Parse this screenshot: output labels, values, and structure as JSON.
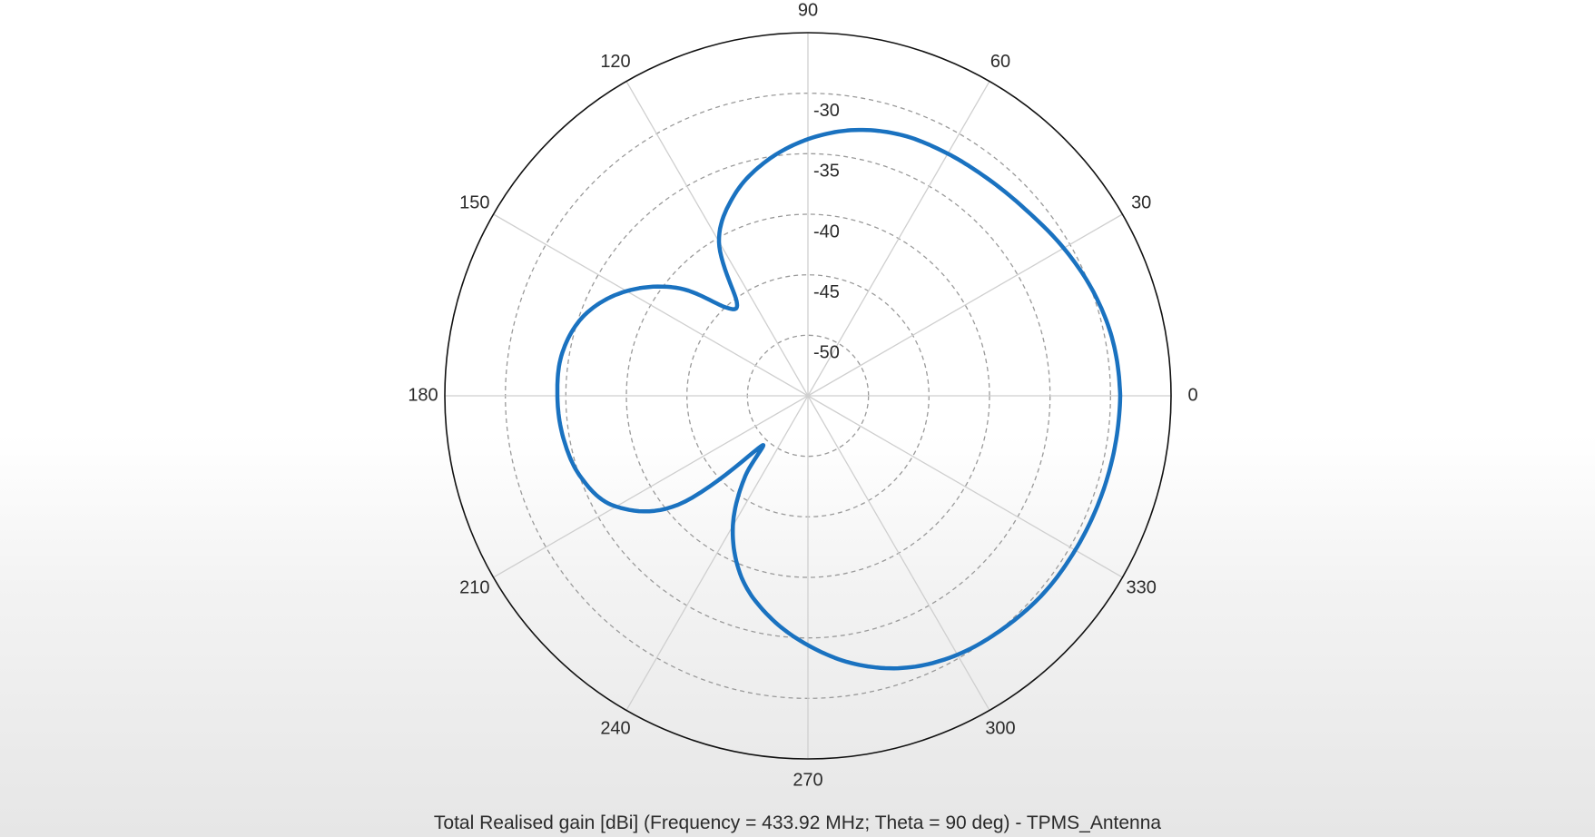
{
  "chart_data": {
    "type": "polar-line",
    "caption": "Total Realised gain [dBi] (Frequency = 433.92 MHz; Theta = 90 deg) - TPMS_Antenna",
    "angle_ticks": [
      "0",
      "30",
      "60",
      "90",
      "120",
      "150",
      "180",
      "210",
      "240",
      "270",
      "300",
      "330"
    ],
    "radial_ticks": [
      "-30",
      "-35",
      "-40",
      "-45",
      "-50"
    ],
    "radial_range": [
      -55,
      -25
    ],
    "grid": true,
    "series": [
      {
        "color": "#1a72c0",
        "points": [
          {
            "phi": 0,
            "gain": -29.2
          },
          {
            "phi": 10,
            "gain": -29.4
          },
          {
            "phi": 20,
            "gain": -29.9
          },
          {
            "phi": 30,
            "gain": -30.6
          },
          {
            "phi": 40,
            "gain": -31.3
          },
          {
            "phi": 50,
            "gain": -31.7
          },
          {
            "phi": 60,
            "gain": -31.9
          },
          {
            "phi": 70,
            "gain": -32.1
          },
          {
            "phi": 80,
            "gain": -32.7
          },
          {
            "phi": 90,
            "gain": -33.8
          },
          {
            "phi": 100,
            "gain": -35.3
          },
          {
            "phi": 110,
            "gain": -37.3
          },
          {
            "phi": 120,
            "gain": -40.3
          },
          {
            "phi": 127,
            "gain": -45.2
          },
          {
            "phi": 133,
            "gain": -45.0
          },
          {
            "phi": 140,
            "gain": -41.2
          },
          {
            "phi": 150,
            "gain": -37.7
          },
          {
            "phi": 160,
            "gain": -35.4
          },
          {
            "phi": 170,
            "gain": -34.4
          },
          {
            "phi": 180,
            "gain": -34.3
          },
          {
            "phi": 190,
            "gain": -34.5
          },
          {
            "phi": 200,
            "gain": -35.1
          },
          {
            "phi": 210,
            "gain": -36.7
          },
          {
            "phi": 220,
            "gain": -41.0
          },
          {
            "phi": 227,
            "gain": -49.3
          },
          {
            "phi": 232,
            "gain": -46.6
          },
          {
            "phi": 240,
            "gain": -42.6
          },
          {
            "phi": 250,
            "gain": -39.0
          },
          {
            "phi": 260,
            "gain": -36.5
          },
          {
            "phi": 270,
            "gain": -34.4
          },
          {
            "phi": 280,
            "gain": -32.5
          },
          {
            "phi": 290,
            "gain": -31.1
          },
          {
            "phi": 300,
            "gain": -30.3
          },
          {
            "phi": 310,
            "gain": -29.9
          },
          {
            "phi": 320,
            "gain": -29.6
          },
          {
            "phi": 330,
            "gain": -29.5
          },
          {
            "phi": 340,
            "gain": -29.4
          },
          {
            "phi": 350,
            "gain": -29.3
          },
          {
            "phi": 360,
            "gain": -29.2
          }
        ]
      }
    ]
  }
}
